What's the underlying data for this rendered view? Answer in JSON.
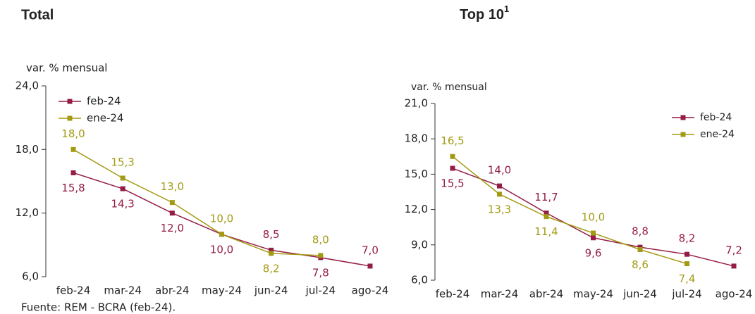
{
  "chart_data": [
    {
      "type": "line",
      "title": "Total",
      "y_label": "var. % mensual",
      "categories": [
        "feb-24",
        "mar-24",
        "abr-24",
        "may-24",
        "jun-24",
        "jul-24",
        "ago-24"
      ],
      "ylim": [
        6,
        24
      ],
      "yticks": [
        {
          "value": 6,
          "label": "6,0"
        },
        {
          "value": 12,
          "label": "12,0"
        },
        {
          "value": 18,
          "label": "18,0"
        },
        {
          "value": 24,
          "label": "24,0"
        }
      ],
      "legend": "upper left",
      "series": [
        {
          "name": "feb-24",
          "color": "#941c45",
          "values": [
            15.8,
            14.3,
            12.0,
            10.0,
            8.5,
            7.8,
            7.0
          ],
          "value_labels": [
            "15,8",
            "14,3",
            "12,0",
            "10,0",
            "8,5",
            "7,8",
            "7,0"
          ]
        },
        {
          "name": "ene-24",
          "color": "#a39a13",
          "values": [
            18.0,
            15.3,
            13.0,
            10.0,
            8.2,
            8.0,
            null
          ],
          "value_labels": [
            "18,0",
            "15,3",
            "13,0",
            "10,0",
            "8,2",
            "8,0",
            null
          ]
        }
      ]
    },
    {
      "type": "line",
      "title": "Top 10",
      "title_note": "1",
      "y_label": "var. % mensual",
      "categories": [
        "feb-24",
        "mar-24",
        "abr-24",
        "may-24",
        "jun-24",
        "jul-24",
        "ago-24"
      ],
      "ylim": [
        6,
        21
      ],
      "yticks": [
        {
          "value": 6,
          "label": "6,0"
        },
        {
          "value": 9,
          "label": "9,0"
        },
        {
          "value": 12,
          "label": "12,0"
        },
        {
          "value": 15,
          "label": "15,0"
        },
        {
          "value": 18,
          "label": "18,0"
        },
        {
          "value": 21,
          "label": "21,0"
        }
      ],
      "legend": "upper right",
      "series": [
        {
          "name": "feb-24",
          "color": "#941c45",
          "values": [
            15.5,
            14.0,
            11.7,
            9.6,
            8.8,
            8.2,
            7.2
          ],
          "value_labels": [
            "15,5",
            "14,0",
            "11,7",
            "9,6",
            "8,8",
            "8,2",
            "7,2"
          ]
        },
        {
          "name": "ene-24",
          "color": "#a39a13",
          "values": [
            16.5,
            13.3,
            11.4,
            10.0,
            8.6,
            7.4,
            null
          ],
          "value_labels": [
            "16,5",
            "13,3",
            "11,4",
            "10,0",
            "8,6",
            "7,4",
            null
          ]
        }
      ]
    }
  ],
  "source": "Fuente: REM - BCRA (feb-24)."
}
